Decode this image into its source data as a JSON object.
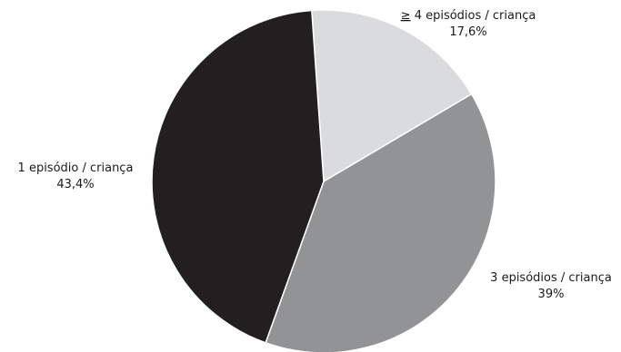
{
  "chart_data": {
    "type": "pie",
    "title": "",
    "slices": [
      {
        "label": "4 episódios / criança",
        "label_prefix": "≥",
        "value": 17.6,
        "value_label": "17,6%",
        "color": "#dadbdc"
      },
      {
        "label": "3 episódios / criança",
        "value": 39,
        "value_label": "39%",
        "color": "#929395"
      },
      {
        "label": "1 episódio / criança",
        "value": 43.4,
        "value_label": "43,4%",
        "color": "#231f20"
      }
    ],
    "start_angle_deg": -4,
    "direction": "clockwise",
    "legend": "none",
    "labels_position": "outside"
  }
}
